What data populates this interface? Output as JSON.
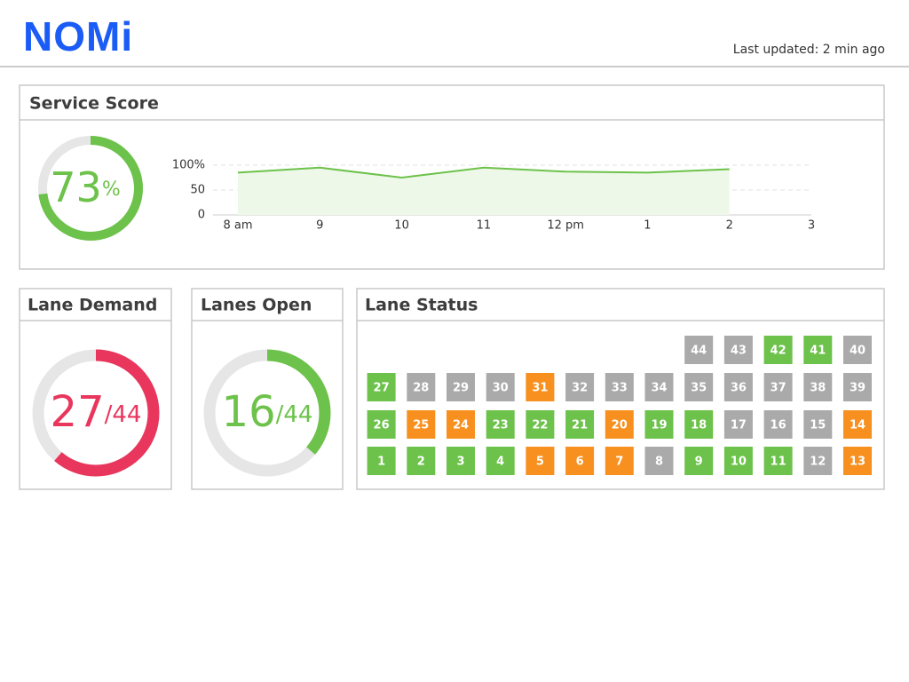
{
  "header": {
    "logo": "NOMi",
    "last_updated": "Last updated: 2 min ago"
  },
  "service_score": {
    "title": "Service Score",
    "value": 73,
    "unit": "%",
    "range": [
      0,
      100
    ],
    "color": "#6cc24a"
  },
  "chart_data": {
    "type": "line",
    "categories": [
      "8 am",
      "9",
      "10",
      "11",
      "12 pm",
      "1",
      "2",
      "3"
    ],
    "values": [
      85,
      95,
      75,
      95,
      87,
      85,
      92,
      null
    ],
    "color": "#6cc24a",
    "fill": "#eef8e8",
    "ylim": [
      0,
      100
    ],
    "yticks": [
      0,
      50,
      {
        "value": 100,
        "label": "100%"
      }
    ],
    "grid": true
  },
  "lane_demand": {
    "title": "Lane Demand",
    "value": 27,
    "separator": "/",
    "total": 44,
    "color": "#e8365d"
  },
  "lanes_open": {
    "title": "Lanes Open",
    "value": 16,
    "separator": "/",
    "total": 44,
    "color": "#6cc24a"
  },
  "lane_status": {
    "title": "Lane Status",
    "rows": [
      [
        {
          "lane": 44,
          "color": "#aaaaaa"
        },
        {
          "lane": 43,
          "color": "#aaaaaa"
        },
        {
          "lane": 42,
          "color": "#6cc24a"
        },
        {
          "lane": 41,
          "color": "#6cc24a"
        },
        {
          "lane": 40,
          "color": "#aaaaaa"
        }
      ],
      [
        {
          "lane": 27,
          "color": "#6cc24a"
        },
        {
          "lane": 28,
          "color": "#aaaaaa"
        },
        {
          "lane": 29,
          "color": "#aaaaaa"
        },
        {
          "lane": 30,
          "color": "#aaaaaa"
        },
        {
          "lane": 31,
          "color": "#f7901e"
        },
        {
          "lane": 32,
          "color": "#aaaaaa"
        },
        {
          "lane": 33,
          "color": "#aaaaaa"
        },
        {
          "lane": 34,
          "color": "#aaaaaa"
        },
        {
          "lane": 35,
          "color": "#aaaaaa"
        },
        {
          "lane": 36,
          "color": "#aaaaaa"
        },
        {
          "lane": 37,
          "color": "#aaaaaa"
        },
        {
          "lane": 38,
          "color": "#aaaaaa"
        },
        {
          "lane": 39,
          "color": "#aaaaaa"
        }
      ],
      [
        {
          "lane": 26,
          "color": "#6cc24a"
        },
        {
          "lane": 25,
          "color": "#f7901e"
        },
        {
          "lane": 24,
          "color": "#f7901e"
        },
        {
          "lane": 23,
          "color": "#6cc24a"
        },
        {
          "lane": 22,
          "color": "#6cc24a"
        },
        {
          "lane": 21,
          "color": "#6cc24a"
        },
        {
          "lane": 20,
          "color": "#f7901e"
        },
        {
          "lane": 19,
          "color": "#6cc24a"
        },
        {
          "lane": 18,
          "color": "#6cc24a"
        },
        {
          "lane": 17,
          "color": "#aaaaaa"
        },
        {
          "lane": 16,
          "color": "#aaaaaa"
        },
        {
          "lane": 15,
          "color": "#aaaaaa"
        },
        {
          "lane": 14,
          "color": "#f7901e"
        }
      ],
      [
        {
          "lane": 1,
          "color": "#6cc24a"
        },
        {
          "lane": 2,
          "color": "#6cc24a"
        },
        {
          "lane": 3,
          "color": "#6cc24a"
        },
        {
          "lane": 4,
          "color": "#6cc24a"
        },
        {
          "lane": 5,
          "color": "#f7901e"
        },
        {
          "lane": 6,
          "color": "#f7901e"
        },
        {
          "lane": 7,
          "color": "#f7901e"
        },
        {
          "lane": 8,
          "color": "#aaaaaa"
        },
        {
          "lane": 9,
          "color": "#6cc24a"
        },
        {
          "lane": 10,
          "color": "#6cc24a"
        },
        {
          "lane": 11,
          "color": "#6cc24a"
        },
        {
          "lane": 12,
          "color": "#aaaaaa"
        },
        {
          "lane": 13,
          "color": "#f7901e"
        }
      ]
    ]
  }
}
